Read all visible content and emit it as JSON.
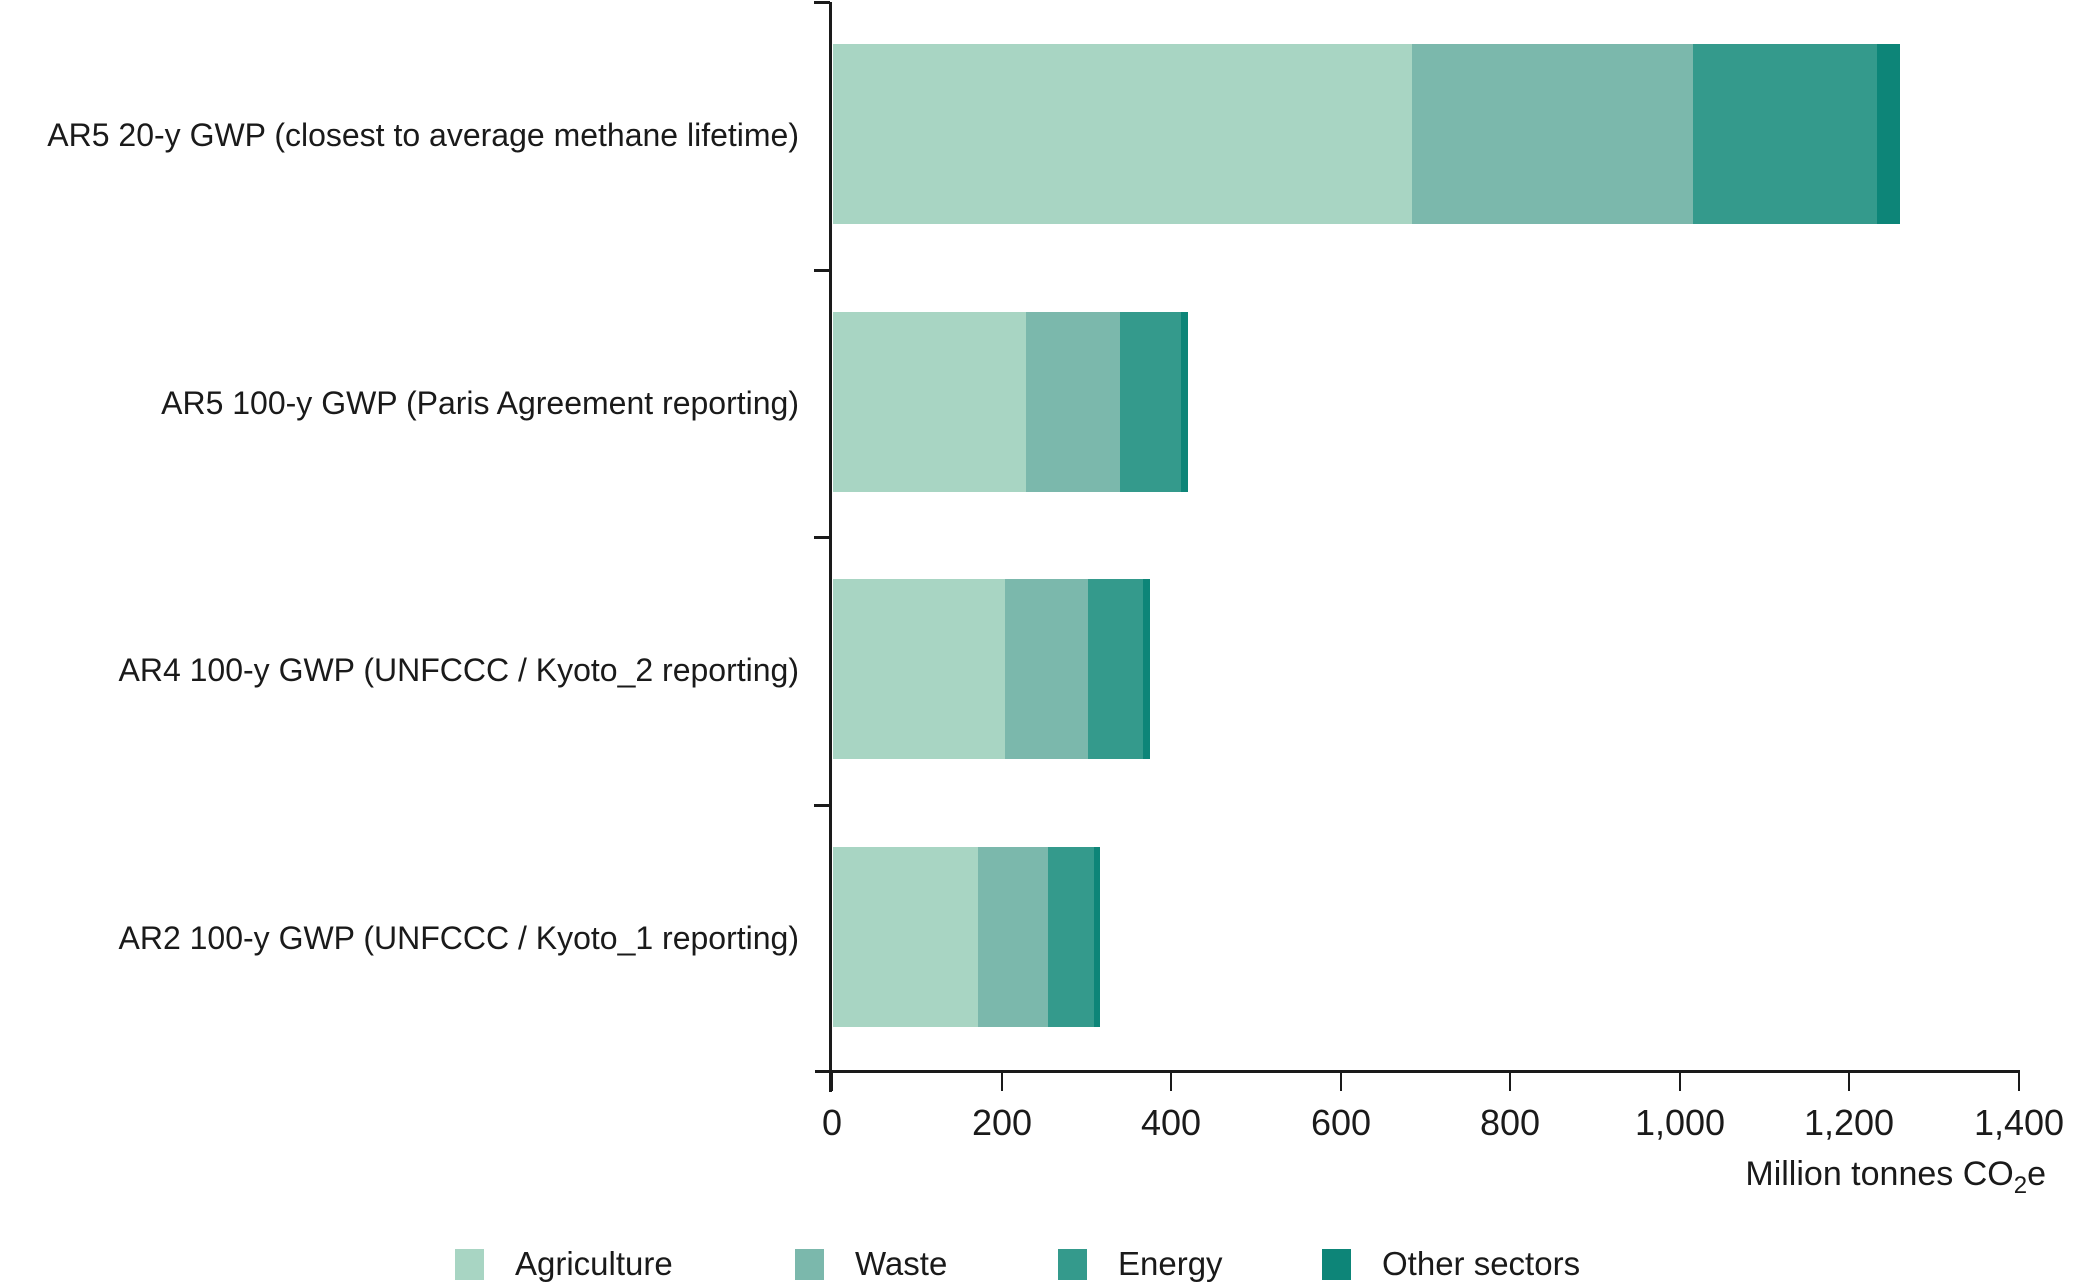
{
  "chart_data": {
    "type": "bar",
    "orientation": "horizontal",
    "stacked": true,
    "grid": false,
    "legend_position": "bottom",
    "categories": [
      "AR5 20-y GWP (closest to average methane lifetime)",
      "AR5 100-y GWP (Paris Agreement reporting)",
      "AR4 100-y GWP (UNFCCC / Kyoto_2 reporting)",
      "AR2 100-y GWP (UNFCCC / Kyoto_1 reporting)"
    ],
    "series": [
      {
        "name": "Agriculture",
        "color": "#a8d5c3",
        "values": [
          683,
          228,
          203,
          171
        ]
      },
      {
        "name": "Waste",
        "color": "#7bb8ac",
        "values": [
          331,
          110,
          98,
          83
        ]
      },
      {
        "name": "Energy",
        "color": "#349a8c",
        "values": [
          217,
          72,
          65,
          54
        ]
      },
      {
        "name": "Other sectors",
        "color": "#0d8578",
        "values": [
          27,
          9,
          8,
          7
        ]
      }
    ],
    "totals": [
      1258,
      419,
      374,
      315
    ],
    "xlim": [
      0,
      1400
    ],
    "x_ticks": [
      0,
      200,
      400,
      600,
      800,
      1000,
      1200,
      1400
    ],
    "x_tick_labels": [
      "0",
      "200",
      "400",
      "600",
      "800",
      "1,000",
      "1,200",
      "1,400"
    ],
    "xlabel": "Million tonnes CO2e",
    "xlabel_parts": {
      "prefix": "Million tonnes CO",
      "sub": "2",
      "suffix": "e"
    },
    "ylabel": "",
    "title": ""
  },
  "colors": {
    "axis": "#1a1a1a",
    "text": "#1a1a1a",
    "background": "#ffffff"
  }
}
